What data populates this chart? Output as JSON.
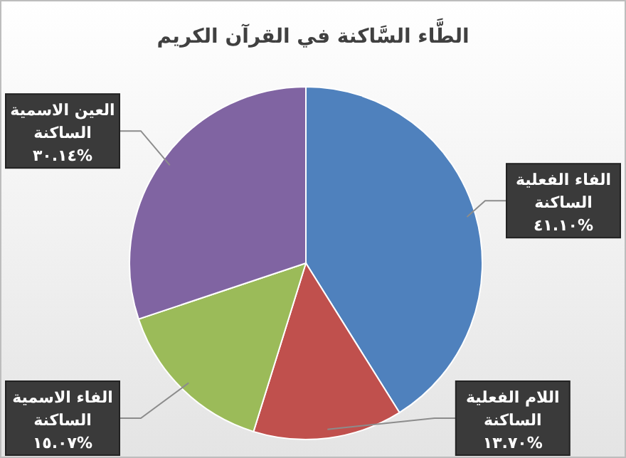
{
  "chart_data": {
    "type": "pie",
    "title": "الطَّاء السَّاكنة في القرآن الكريم",
    "categories": [
      "الفاء الفعلية الساكنة",
      "اللام الفعلية الساكنة",
      "الفاء الاسمية الساكنة",
      "العين الاسمية الساكنة"
    ],
    "values": [
      41.1,
      13.7,
      15.07,
      30.14
    ],
    "value_labels": [
      "٤١.١٠%",
      "١٣.٧٠%",
      "١٥.٠٧%",
      "٣٠.١٤%"
    ],
    "colors": [
      "#4f81bd",
      "#c0504d",
      "#9bbb59",
      "#8064a2"
    ]
  }
}
